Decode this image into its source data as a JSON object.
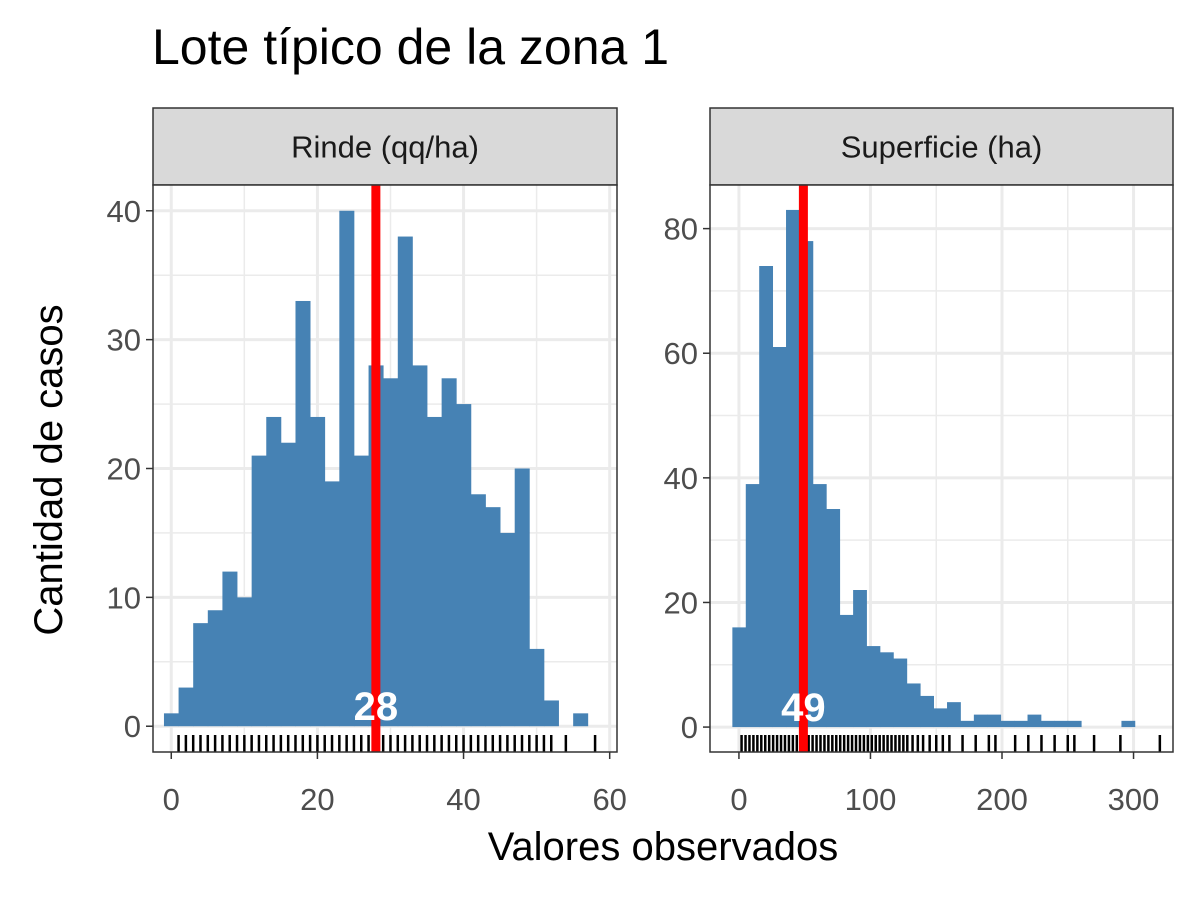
{
  "chart_data": {
    "type": "bar",
    "title": "Lote típico de la zona 1",
    "xlabel": "Valores observados",
    "ylabel": "Cantidad de casos",
    "grid": true,
    "bar_color": "#4682B4",
    "median_line_color": "#FF0000",
    "median_label_color": "#FFFFFF",
    "strip_fill": "#D9D9D9",
    "panels": [
      {
        "facet": "Rinde (qq/ha)",
        "bin_start": -1,
        "bin_width": 2,
        "counts": [
          1,
          3,
          8,
          9,
          12,
          10,
          21,
          24,
          22,
          33,
          24,
          19,
          40,
          21,
          28,
          27,
          38,
          28,
          24,
          27,
          25,
          18,
          17,
          15,
          20,
          6,
          2,
          0,
          1
        ],
        "median": 28,
        "median_label": "28",
        "xlim": [
          -2.5,
          61
        ],
        "ylim": [
          -2,
          42
        ],
        "xticks": [
          0,
          20,
          40,
          60
        ],
        "xtick_labels": [
          "0",
          "20",
          "40",
          "60"
        ],
        "yticks": [
          0,
          10,
          20,
          30,
          40
        ],
        "ytick_labels": [
          "0",
          "10",
          "20",
          "30",
          "40"
        ],
        "rug": [
          1,
          2,
          3,
          4,
          5,
          6,
          7,
          8,
          9,
          10,
          11,
          12,
          13,
          14,
          15,
          16,
          17,
          18,
          19,
          20,
          21,
          22,
          23,
          24,
          25,
          26,
          27,
          28,
          29,
          30,
          31,
          32,
          33,
          34,
          35,
          36,
          37,
          38,
          39,
          40,
          41,
          42,
          43,
          44,
          45,
          46,
          47,
          48,
          49,
          50,
          51,
          52,
          54,
          58
        ]
      },
      {
        "facet": "Superficie (ha)",
        "bin_start": -5,
        "bin_width": 10.2,
        "counts": [
          16,
          39,
          74,
          61,
          83,
          78,
          39,
          35,
          18,
          22,
          13,
          12,
          11,
          7,
          5,
          3,
          4,
          1,
          2,
          2,
          1,
          1,
          2,
          1,
          1,
          1,
          0,
          0,
          0,
          1
        ],
        "median": 49,
        "median_label": "49",
        "xlim": [
          -22,
          330
        ],
        "ylim": [
          -4,
          87
        ],
        "xticks": [
          0,
          100,
          200,
          300
        ],
        "xtick_labels": [
          "0",
          "100",
          "200",
          "300"
        ],
        "yticks": [
          0,
          20,
          40,
          60,
          80
        ],
        "ytick_labels": [
          "0",
          "20",
          "40",
          "60",
          "80"
        ],
        "rug": [
          2,
          5,
          8,
          11,
          14,
          17,
          20,
          23,
          26,
          29,
          32,
          35,
          38,
          41,
          44,
          47,
          50,
          53,
          56,
          59,
          62,
          65,
          68,
          71,
          74,
          77,
          80,
          83,
          86,
          89,
          92,
          95,
          98,
          101,
          104,
          107,
          110,
          113,
          116,
          119,
          122,
          125,
          128,
          132,
          136,
          140,
          145,
          150,
          155,
          160,
          170,
          180,
          190,
          195,
          210,
          220,
          230,
          240,
          250,
          255,
          270,
          290,
          320
        ]
      }
    ]
  }
}
